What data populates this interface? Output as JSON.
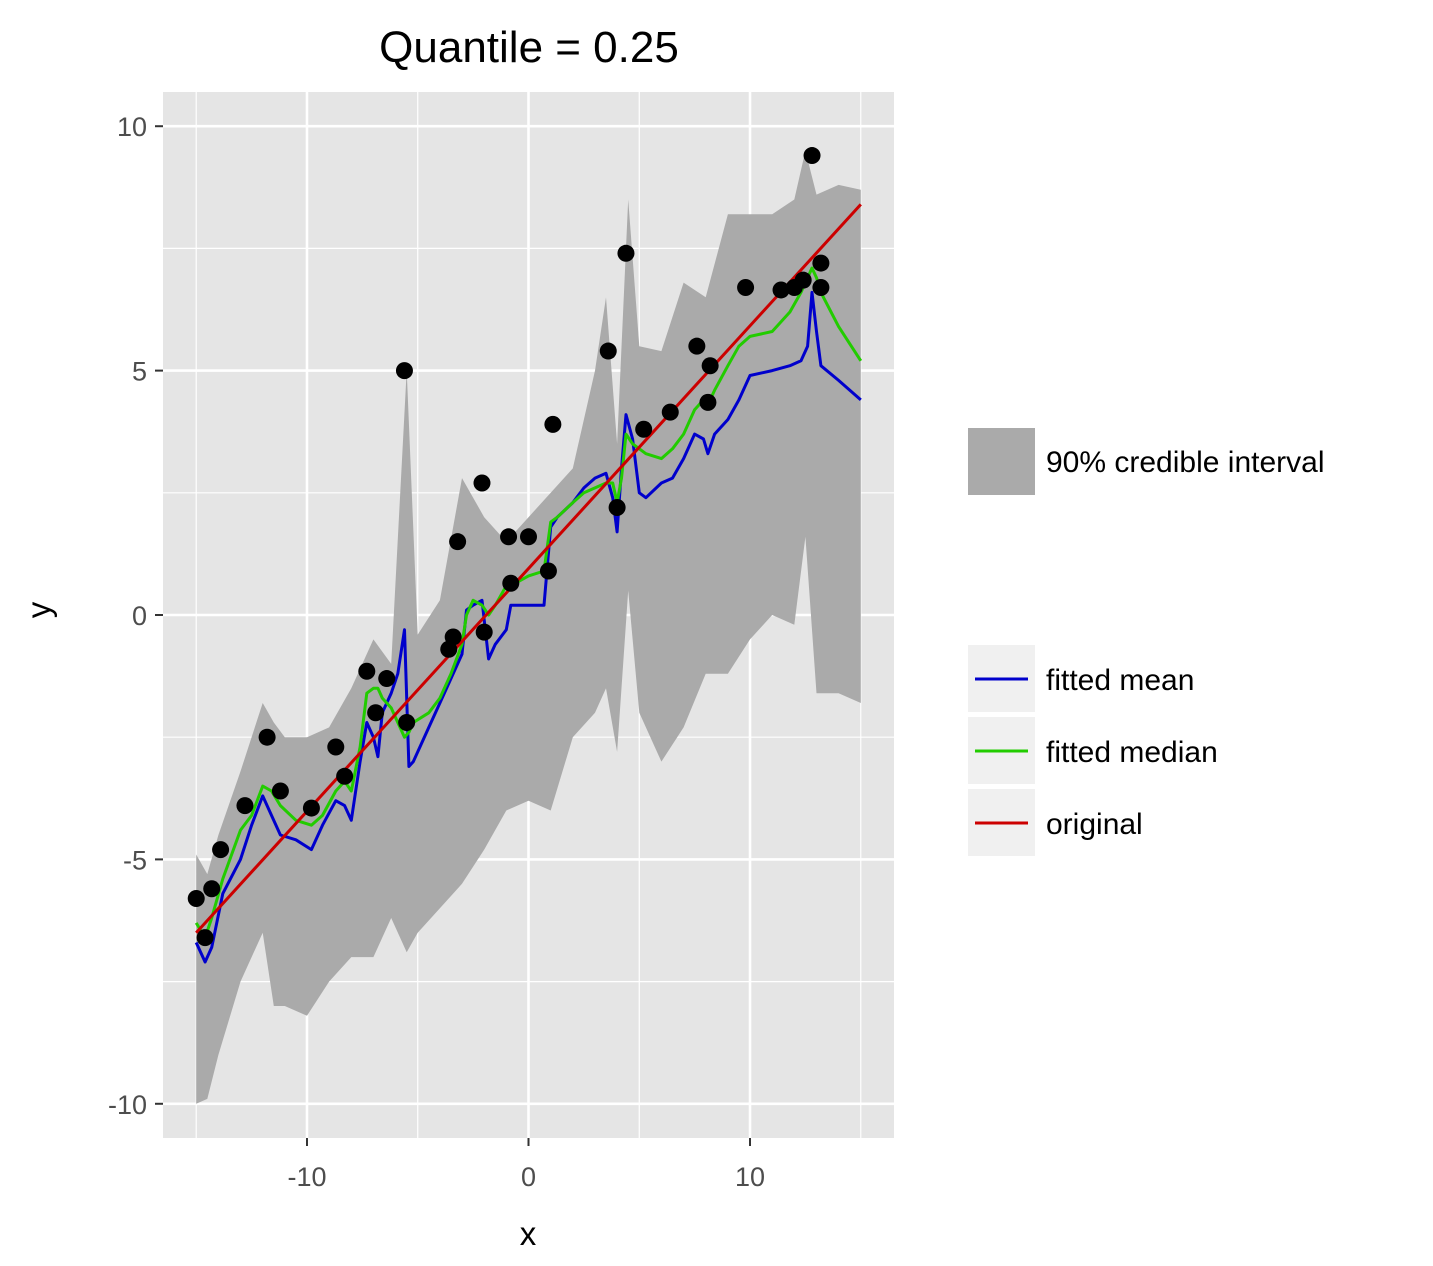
{
  "chart_data": {
    "type": "line",
    "title": "Quantile = 0.25",
    "xlabel": "x",
    "ylabel": "y",
    "xlim": [
      -16.5,
      16.5
    ],
    "ylim": [
      -10.7,
      10.7
    ],
    "x_ticks": [
      -10,
      0,
      10
    ],
    "x_tick_labels": [
      "-10",
      "0",
      "10"
    ],
    "y_ticks": [
      -10,
      -5,
      0,
      5,
      10
    ],
    "y_tick_labels": [
      "-10",
      "-5",
      "0",
      "5",
      "10"
    ],
    "grid": true,
    "legend_position": "right",
    "colors": {
      "panel": "#e5e5e5",
      "grid": "#ffffff",
      "ribbon": "#aaaaaa",
      "fitted_mean": "#0000cc",
      "fitted_median": "#22cc00",
      "original": "#cc0000",
      "points": "#000000",
      "legend_key_bg": "#f0f0f0"
    },
    "legend": {
      "ribbon_label": "90% credible interval",
      "line_labels": [
        "fitted mean",
        "fitted median",
        "original"
      ]
    },
    "ribbon": {
      "name": "90% credible interval",
      "x": [
        -15.0,
        -14.5,
        -14.0,
        -13.0,
        -12.0,
        -11.5,
        -11.0,
        -10.0,
        -9.0,
        -8.0,
        -7.0,
        -6.2,
        -5.5,
        -5.0,
        -4.0,
        -3.0,
        -2.0,
        -1.0,
        0.0,
        1.0,
        2.0,
        3.0,
        3.5,
        4.0,
        4.5,
        5.0,
        6.0,
        7.0,
        8.0,
        9.0,
        10.0,
        11.0,
        12.0,
        12.5,
        13.0,
        14.0,
        15.0
      ],
      "upper": [
        -4.9,
        -5.3,
        -4.5,
        -3.2,
        -1.8,
        -2.2,
        -2.5,
        -2.5,
        -2.3,
        -1.5,
        -0.5,
        -1.0,
        5.0,
        -0.4,
        0.3,
        2.8,
        2.0,
        1.5,
        2.0,
        2.5,
        3.0,
        5.0,
        6.5,
        3.5,
        8.5,
        5.5,
        5.4,
        6.8,
        6.5,
        8.2,
        8.2,
        8.2,
        8.5,
        9.5,
        8.6,
        8.8,
        8.7
      ],
      "lower": [
        -10.0,
        -9.9,
        -9.0,
        -7.5,
        -6.5,
        -8.0,
        -8.0,
        -8.2,
        -7.5,
        -7.0,
        -7.0,
        -6.2,
        -6.9,
        -6.5,
        -6.0,
        -5.5,
        -4.8,
        -4.0,
        -3.8,
        -4.0,
        -2.5,
        -2.0,
        -1.5,
        -2.8,
        0.5,
        -2.0,
        -3.0,
        -2.3,
        -1.2,
        -1.2,
        -0.5,
        0.0,
        -0.2,
        1.6,
        -1.6,
        -1.6,
        -1.8
      ]
    },
    "series": [
      {
        "name": "fitted mean",
        "x": [
          -15.0,
          -14.6,
          -14.3,
          -13.8,
          -13.0,
          -12.5,
          -12.0,
          -11.6,
          -11.2,
          -10.5,
          -9.8,
          -9.3,
          -8.7,
          -8.3,
          -8.0,
          -7.6,
          -7.3,
          -7.0,
          -6.8,
          -6.6,
          -6.2,
          -5.9,
          -5.6,
          -5.4,
          -5.2,
          -4.5,
          -4.0,
          -3.5,
          -3.0,
          -2.8,
          -2.5,
          -2.1,
          -1.8,
          -1.5,
          -1.0,
          -0.8,
          0.0,
          0.7,
          1.0,
          1.3,
          2.0,
          2.5,
          3.0,
          3.5,
          3.8,
          4.0,
          4.2,
          4.4,
          4.7,
          5.0,
          5.3,
          6.0,
          6.5,
          7.0,
          7.5,
          7.9,
          8.1,
          8.4,
          9.0,
          9.5,
          10.0,
          11.0,
          11.8,
          12.3,
          12.6,
          12.8,
          13.0,
          13.2,
          14.0,
          15.0
        ],
        "values": [
          -6.7,
          -7.1,
          -6.8,
          -5.7,
          -5.0,
          -4.3,
          -3.7,
          -4.1,
          -4.5,
          -4.6,
          -4.8,
          -4.3,
          -3.8,
          -3.9,
          -4.2,
          -3.0,
          -2.2,
          -2.5,
          -2.9,
          -2.0,
          -1.6,
          -1.2,
          -0.3,
          -3.1,
          -3.0,
          -2.3,
          -1.8,
          -1.3,
          -0.8,
          0.1,
          0.2,
          0.3,
          -0.9,
          -0.6,
          -0.3,
          0.2,
          0.2,
          0.2,
          1.8,
          2.0,
          2.3,
          2.6,
          2.8,
          2.9,
          2.4,
          1.7,
          3.0,
          4.1,
          3.6,
          2.5,
          2.4,
          2.7,
          2.8,
          3.2,
          3.7,
          3.6,
          3.3,
          3.7,
          4.0,
          4.4,
          4.9,
          5.0,
          5.1,
          5.2,
          5.5,
          6.6,
          5.8,
          5.1,
          4.8,
          4.4
        ]
      },
      {
        "name": "fitted median",
        "x": [
          -15.0,
          -14.6,
          -14.3,
          -13.8,
          -13.0,
          -12.5,
          -12.0,
          -11.6,
          -11.2,
          -10.5,
          -9.8,
          -9.3,
          -8.7,
          -8.3,
          -8.0,
          -7.6,
          -7.3,
          -7.0,
          -6.8,
          -6.6,
          -6.2,
          -5.9,
          -5.6,
          -5.4,
          -5.2,
          -4.5,
          -4.0,
          -3.5,
          -3.0,
          -2.8,
          -2.5,
          -2.1,
          -1.8,
          -1.5,
          -1.0,
          -0.8,
          0.0,
          0.7,
          1.0,
          1.3,
          2.0,
          2.5,
          3.0,
          3.5,
          3.8,
          4.0,
          4.2,
          4.4,
          4.7,
          5.0,
          5.3,
          6.0,
          6.5,
          7.0,
          7.5,
          7.9,
          8.1,
          8.4,
          9.0,
          9.5,
          10.0,
          11.0,
          11.8,
          12.3,
          12.6,
          12.8,
          13.0,
          13.2,
          14.0,
          15.0
        ],
        "values": [
          -6.3,
          -6.6,
          -6.2,
          -5.4,
          -4.4,
          -4.1,
          -3.5,
          -3.6,
          -3.9,
          -4.2,
          -4.3,
          -4.1,
          -3.6,
          -3.4,
          -3.6,
          -2.7,
          -1.6,
          -1.5,
          -1.5,
          -1.7,
          -1.9,
          -2.2,
          -2.5,
          -2.4,
          -2.2,
          -2.0,
          -1.7,
          -1.2,
          -0.6,
          0.0,
          0.3,
          0.2,
          0.0,
          0.2,
          0.6,
          0.6,
          0.8,
          0.9,
          1.9,
          2.0,
          2.3,
          2.5,
          2.6,
          2.7,
          2.7,
          2.3,
          2.8,
          3.7,
          3.5,
          3.4,
          3.3,
          3.2,
          3.4,
          3.7,
          4.2,
          4.4,
          4.3,
          4.6,
          5.1,
          5.5,
          5.7,
          5.8,
          6.2,
          6.6,
          6.9,
          7.1,
          6.9,
          6.6,
          5.9,
          5.2
        ]
      },
      {
        "name": "original",
        "x": [
          -15.0,
          15.0
        ],
        "values": [
          -6.5,
          8.4
        ]
      }
    ],
    "points": {
      "x": [
        -15.0,
        -14.6,
        -14.3,
        -13.9,
        -12.8,
        -11.8,
        -11.2,
        -9.8,
        -8.7,
        -8.3,
        -7.3,
        -6.9,
        -6.4,
        -5.6,
        -5.5,
        -3.6,
        -3.4,
        -3.2,
        -2.1,
        -2.0,
        -0.9,
        -0.8,
        0.0,
        0.9,
        1.1,
        3.6,
        4.0,
        4.4,
        5.2,
        6.4,
        7.6,
        8.1,
        8.2,
        9.8,
        11.4,
        12.0,
        12.4,
        12.8,
        13.2,
        13.2
      ],
      "y": [
        -5.8,
        -6.6,
        -5.6,
        -4.8,
        -3.9,
        -2.5,
        -3.6,
        -3.95,
        -2.7,
        -3.3,
        -1.15,
        -2.0,
        -1.3,
        5.0,
        -2.2,
        -0.7,
        -0.45,
        1.5,
        2.7,
        -0.35,
        1.6,
        0.65,
        1.6,
        0.9,
        3.9,
        5.4,
        2.2,
        7.4,
        3.8,
        4.15,
        5.5,
        4.35,
        5.1,
        6.7,
        6.65,
        6.7,
        6.85,
        9.4,
        7.2,
        6.7
      ]
    }
  }
}
